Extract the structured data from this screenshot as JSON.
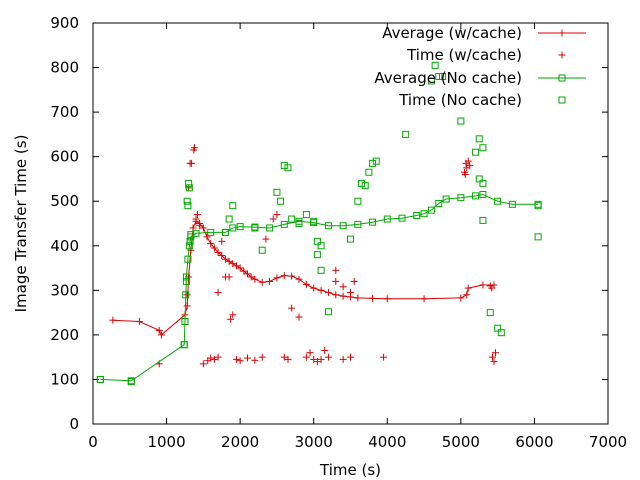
{
  "chart_data": {
    "type": "scatter",
    "xlabel": "Time (s)",
    "ylabel": "Image Transfer Time (s)",
    "xlim": [
      0,
      7000
    ],
    "ylim": [
      0,
      900
    ],
    "x_ticks": [
      0,
      1000,
      2000,
      3000,
      4000,
      5000,
      6000,
      7000
    ],
    "y_ticks": [
      0,
      100,
      200,
      300,
      400,
      500,
      600,
      700,
      800,
      900
    ],
    "grid": false,
    "legend_position": "top-right",
    "series": [
      {
        "name": "Average (w/cache)",
        "style": "line-points",
        "marker": "plus",
        "color": "#dd0000",
        "points": [
          [
            270,
            233
          ],
          [
            630,
            230
          ],
          [
            900,
            210
          ],
          [
            930,
            200
          ],
          [
            1250,
            245
          ],
          [
            1280,
            265
          ],
          [
            1300,
            330
          ],
          [
            1330,
            390
          ],
          [
            1360,
            440
          ],
          [
            1400,
            455
          ],
          [
            1450,
            450
          ],
          [
            1500,
            440
          ],
          [
            1550,
            420
          ],
          [
            1600,
            405
          ],
          [
            1650,
            395
          ],
          [
            1700,
            385
          ],
          [
            1750,
            378
          ],
          [
            1800,
            370
          ],
          [
            1850,
            365
          ],
          [
            1900,
            360
          ],
          [
            1950,
            355
          ],
          [
            2000,
            350
          ],
          [
            2050,
            343
          ],
          [
            2100,
            337
          ],
          [
            2150,
            330
          ],
          [
            2200,
            325
          ],
          [
            2300,
            318
          ],
          [
            2400,
            320
          ],
          [
            2500,
            328
          ],
          [
            2600,
            333
          ],
          [
            2700,
            332
          ],
          [
            2800,
            325
          ],
          [
            2900,
            313
          ],
          [
            3000,
            305
          ],
          [
            3100,
            300
          ],
          [
            3200,
            295
          ],
          [
            3300,
            290
          ],
          [
            3400,
            287
          ],
          [
            3500,
            285
          ],
          [
            3600,
            283
          ],
          [
            3800,
            282
          ],
          [
            4000,
            281
          ],
          [
            4500,
            281
          ],
          [
            5000,
            283
          ],
          [
            5080,
            290
          ],
          [
            5100,
            305
          ],
          [
            5300,
            312
          ],
          [
            5450,
            312
          ]
        ]
      },
      {
        "name": "Time (w/cache)",
        "style": "points",
        "marker": "plus",
        "color": "#dd0000",
        "points": [
          [
            900,
            135
          ],
          [
            1280,
            290
          ],
          [
            1300,
            530
          ],
          [
            1320,
            585
          ],
          [
            1340,
            585
          ],
          [
            1370,
            615
          ],
          [
            1380,
            620
          ],
          [
            1400,
            460
          ],
          [
            1420,
            470
          ],
          [
            1450,
            445
          ],
          [
            1500,
            135
          ],
          [
            1560,
            142
          ],
          [
            1600,
            148
          ],
          [
            1650,
            145
          ],
          [
            1700,
            150
          ],
          [
            1700,
            295
          ],
          [
            1750,
            410
          ],
          [
            1800,
            330
          ],
          [
            1850,
            330
          ],
          [
            1870,
            235
          ],
          [
            1900,
            245
          ],
          [
            1950,
            145
          ],
          [
            2000,
            142
          ],
          [
            2100,
            148
          ],
          [
            2200,
            143
          ],
          [
            2300,
            150
          ],
          [
            2350,
            415
          ],
          [
            2450,
            460
          ],
          [
            2500,
            470
          ],
          [
            2600,
            150
          ],
          [
            2650,
            145
          ],
          [
            2700,
            260
          ],
          [
            2800,
            240
          ],
          [
            2900,
            150
          ],
          [
            2950,
            160
          ],
          [
            3000,
            145
          ],
          [
            3050,
            140
          ],
          [
            3100,
            145
          ],
          [
            3150,
            165
          ],
          [
            3200,
            150
          ],
          [
            3300,
            345
          ],
          [
            3400,
            145
          ],
          [
            3500,
            150
          ],
          [
            3550,
            320
          ],
          [
            3300,
            320
          ],
          [
            3400,
            308
          ],
          [
            3500,
            295
          ],
          [
            3950,
            150
          ],
          [
            5050,
            565
          ],
          [
            5080,
            575
          ],
          [
            5100,
            590
          ],
          [
            5120,
            580
          ],
          [
            5060,
            560
          ],
          [
            5070,
            585
          ],
          [
            5400,
            310
          ],
          [
            5420,
            305
          ],
          [
            5430,
            150
          ],
          [
            5450,
            140
          ],
          [
            5470,
            160
          ]
        ]
      },
      {
        "name": "Average (No cache)",
        "style": "line-points",
        "marker": "square",
        "color": "#00aa00",
        "points": [
          [
            100,
            100
          ],
          [
            520,
            97
          ],
          [
            1240,
            178
          ],
          [
            1250,
            230
          ],
          [
            1270,
            330
          ],
          [
            1290,
            370
          ],
          [
            1310,
            400
          ],
          [
            1330,
            420
          ],
          [
            1400,
            428
          ],
          [
            1600,
            430
          ],
          [
            1800,
            430
          ],
          [
            1900,
            440
          ],
          [
            2000,
            443
          ],
          [
            2200,
            442
          ],
          [
            2400,
            440
          ],
          [
            2600,
            448
          ],
          [
            2800,
            455
          ],
          [
            3000,
            452
          ],
          [
            3200,
            445
          ],
          [
            3400,
            445
          ],
          [
            3600,
            448
          ],
          [
            3800,
            453
          ],
          [
            4000,
            460
          ],
          [
            4200,
            462
          ],
          [
            4400,
            468
          ],
          [
            4500,
            472
          ],
          [
            4600,
            480
          ],
          [
            4700,
            495
          ],
          [
            4800,
            505
          ],
          [
            5000,
            508
          ],
          [
            5200,
            512
          ],
          [
            5300,
            515
          ],
          [
            5500,
            500
          ],
          [
            5700,
            493
          ],
          [
            6050,
            493
          ]
        ]
      },
      {
        "name": "Time (No cache)",
        "style": "points",
        "marker": "square",
        "color": "#00aa00",
        "points": [
          [
            100,
            100
          ],
          [
            520,
            95
          ],
          [
            1240,
            178
          ],
          [
            1250,
            230
          ],
          [
            1260,
            290
          ],
          [
            1270,
            320
          ],
          [
            1280,
            500
          ],
          [
            1290,
            490
          ],
          [
            1300,
            540
          ],
          [
            1310,
            530
          ],
          [
            1320,
            410
          ],
          [
            1330,
            425
          ],
          [
            1800,
            430
          ],
          [
            1850,
            460
          ],
          [
            1900,
            490
          ],
          [
            2200,
            440
          ],
          [
            2300,
            390
          ],
          [
            2500,
            520
          ],
          [
            2550,
            500
          ],
          [
            2600,
            580
          ],
          [
            2650,
            575
          ],
          [
            2700,
            460
          ],
          [
            2800,
            450
          ],
          [
            2900,
            470
          ],
          [
            3000,
            455
          ],
          [
            3050,
            410
          ],
          [
            3100,
            400
          ],
          [
            3050,
            380
          ],
          [
            3100,
            345
          ],
          [
            3200,
            252
          ],
          [
            3500,
            415
          ],
          [
            3600,
            500
          ],
          [
            3650,
            540
          ],
          [
            3700,
            535
          ],
          [
            3750,
            565
          ],
          [
            3800,
            585
          ],
          [
            3850,
            590
          ],
          [
            4250,
            650
          ],
          [
            4600,
            770
          ],
          [
            4650,
            805
          ],
          [
            4700,
            780
          ],
          [
            4750,
            780
          ],
          [
            5000,
            680
          ],
          [
            5200,
            610
          ],
          [
            5250,
            550
          ],
          [
            5250,
            640
          ],
          [
            5300,
            620
          ],
          [
            5300,
            540
          ],
          [
            5300,
            457
          ],
          [
            5400,
            250
          ],
          [
            5500,
            215
          ],
          [
            5550,
            205
          ],
          [
            6050,
            490
          ],
          [
            6050,
            420
          ]
        ]
      }
    ]
  }
}
